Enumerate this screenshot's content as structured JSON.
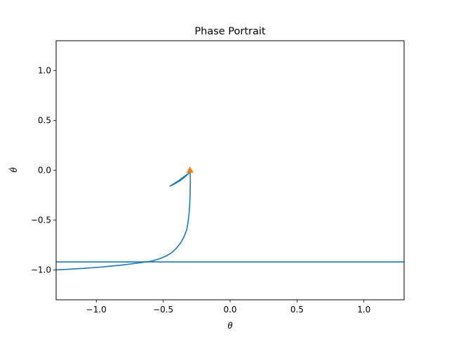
{
  "chart_data": {
    "type": "line",
    "title": "Phase Portrait",
    "xlabel": "θ",
    "ylabel": "θ̇",
    "xlim": [
      -1.3,
      1.3
    ],
    "ylim": [
      -1.3,
      1.3
    ],
    "xticks": [
      -1.0,
      -0.5,
      0.0,
      0.5,
      1.0
    ],
    "xtick_labels": [
      "−1.0",
      "−0.5",
      "0.0",
      "0.5",
      "1.0"
    ],
    "yticks": [
      -1.0,
      -0.5,
      0.0,
      0.5,
      1.0
    ],
    "ytick_labels": [
      "−1.0",
      "−0.5",
      "0.0",
      "0.5",
      "1.0"
    ],
    "grid": false,
    "series": [
      {
        "type": "line",
        "color": "#1f77b4",
        "x": [
          -1.3,
          -1.1,
          -0.95,
          -0.8,
          -0.68,
          -0.58,
          -0.52,
          -0.47,
          -0.43,
          -0.4,
          -0.37,
          -0.345,
          -0.325,
          -0.315,
          -0.308,
          -0.303,
          -0.3,
          -0.298,
          -0.297,
          -0.298,
          -0.3,
          -0.34,
          -0.38,
          -0.42,
          -0.45,
          -0.42,
          -0.38,
          -0.34,
          -0.31,
          -0.3
        ],
        "y": [
          -1.0,
          -0.985,
          -0.97,
          -0.95,
          -0.93,
          -0.91,
          -0.885,
          -0.855,
          -0.82,
          -0.78,
          -0.73,
          -0.67,
          -0.6,
          -0.53,
          -0.45,
          -0.37,
          -0.28,
          -0.19,
          -0.1,
          -0.04,
          -0.02,
          -0.06,
          -0.1,
          -0.135,
          -0.16,
          -0.14,
          -0.11,
          -0.07,
          -0.03,
          0.0
        ]
      },
      {
        "type": "hline",
        "color": "#1f77b4",
        "y": -0.92
      },
      {
        "type": "marker",
        "marker": "triangle-up",
        "color": "#ff7f0e",
        "x": [
          -0.3
        ],
        "y": [
          0.0
        ]
      }
    ]
  }
}
